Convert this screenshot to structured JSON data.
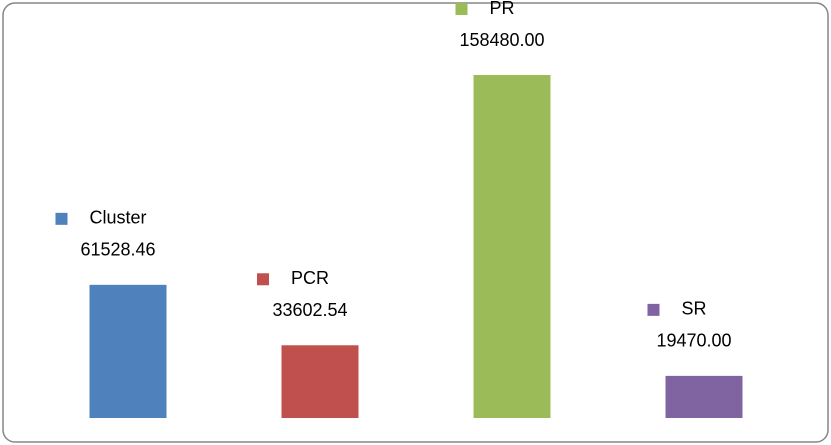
{
  "chart_data": {
    "type": "bar",
    "categories": [
      "Cluster",
      "PCR",
      "PR",
      "SR"
    ],
    "values": [
      61528.46,
      33602.54,
      158480,
      19470
    ],
    "value_labels": [
      "61528.46",
      "33602.54",
      "158480.00",
      "19470.00"
    ],
    "colors": [
      "#4f81bd",
      "#c0504d",
      "#9bbb59",
      "#8064a2"
    ]
  }
}
